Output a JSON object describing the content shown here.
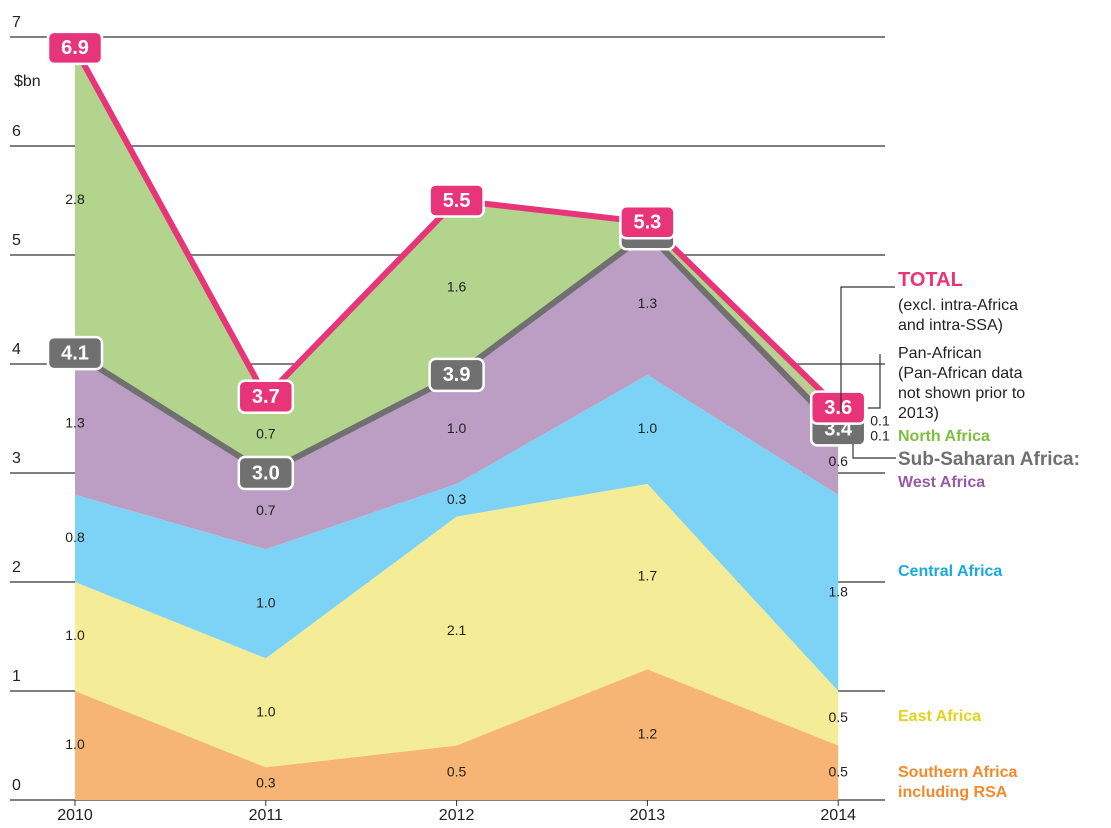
{
  "chart_data": {
    "type": "stacked-area",
    "y_unit": "$bn",
    "categories": [
      "2010",
      "2011",
      "2012",
      "2013",
      "2014"
    ],
    "ylim": [
      0,
      7
    ],
    "yticks": [
      0,
      1,
      2,
      3,
      4,
      5,
      6,
      7
    ],
    "grid": true,
    "series": [
      {
        "name": "Southern Africa including RSA",
        "color": "#f7b575",
        "label_color": "#f28a2c",
        "values": [
          1,
          0.3,
          0.5,
          1.2,
          0.5
        ],
        "value_labels": [
          "1.0",
          "0.3",
          "0.5",
          "1.2",
          "0.5"
        ]
      },
      {
        "name": "East Africa",
        "color": "#f5ec98",
        "label_color": "#e3d21f",
        "values": [
          1,
          1,
          2.1,
          1.7,
          0.5
        ],
        "value_labels": [
          "1.0",
          "1.0",
          "2.1",
          "1.7",
          "0.5"
        ]
      },
      {
        "name": "Central Africa",
        "color": "#7dd3f5",
        "label_color": "#1aa9de",
        "values": [
          0.8,
          1,
          0.3,
          1,
          1.8
        ],
        "value_labels": [
          "0.8",
          "1.0",
          "0.3",
          "1.0",
          "1.8"
        ]
      },
      {
        "name": "West Africa",
        "color": "#bc9ec4",
        "label_color": "#9b59a8",
        "values": [
          1.3,
          0.7,
          1,
          1.3,
          0.6
        ],
        "value_labels": [
          "1.3",
          "0.7",
          "1.0",
          "1.3",
          "0.6"
        ]
      },
      {
        "name": "Pan-African",
        "note": "(Pan-African data not shown prior to 2013)",
        "color": "#c9c29a",
        "label_color": "#222222",
        "values": [
          null,
          null,
          null,
          0,
          0.1
        ],
        "value_labels": [
          null,
          null,
          null,
          null,
          "0.1"
        ]
      },
      {
        "name": "North Africa",
        "color": "#b2d48c",
        "label_color": "#7cbf3f",
        "values": [
          2.8,
          0.7,
          1.6,
          0.1,
          0.1
        ],
        "value_labels": [
          "2.8",
          "0.7",
          "1.6",
          "0.1",
          "0.1"
        ]
      }
    ],
    "lines": [
      {
        "name": "Sub-Saharan Africa:",
        "color": "#707070",
        "values": [
          4.1,
          3,
          3.9,
          5.2,
          3.4
        ],
        "value_labels": [
          "4.1",
          "3.0",
          "3.9",
          "5.2",
          "3.4"
        ]
      },
      {
        "name": "TOTAL",
        "note": "(excl. intra-Africa and intra-SSA)",
        "color": "#e8357a",
        "values": [
          6.9,
          3.7,
          5.5,
          5.3,
          3.6
        ]
      }
    ]
  }
}
